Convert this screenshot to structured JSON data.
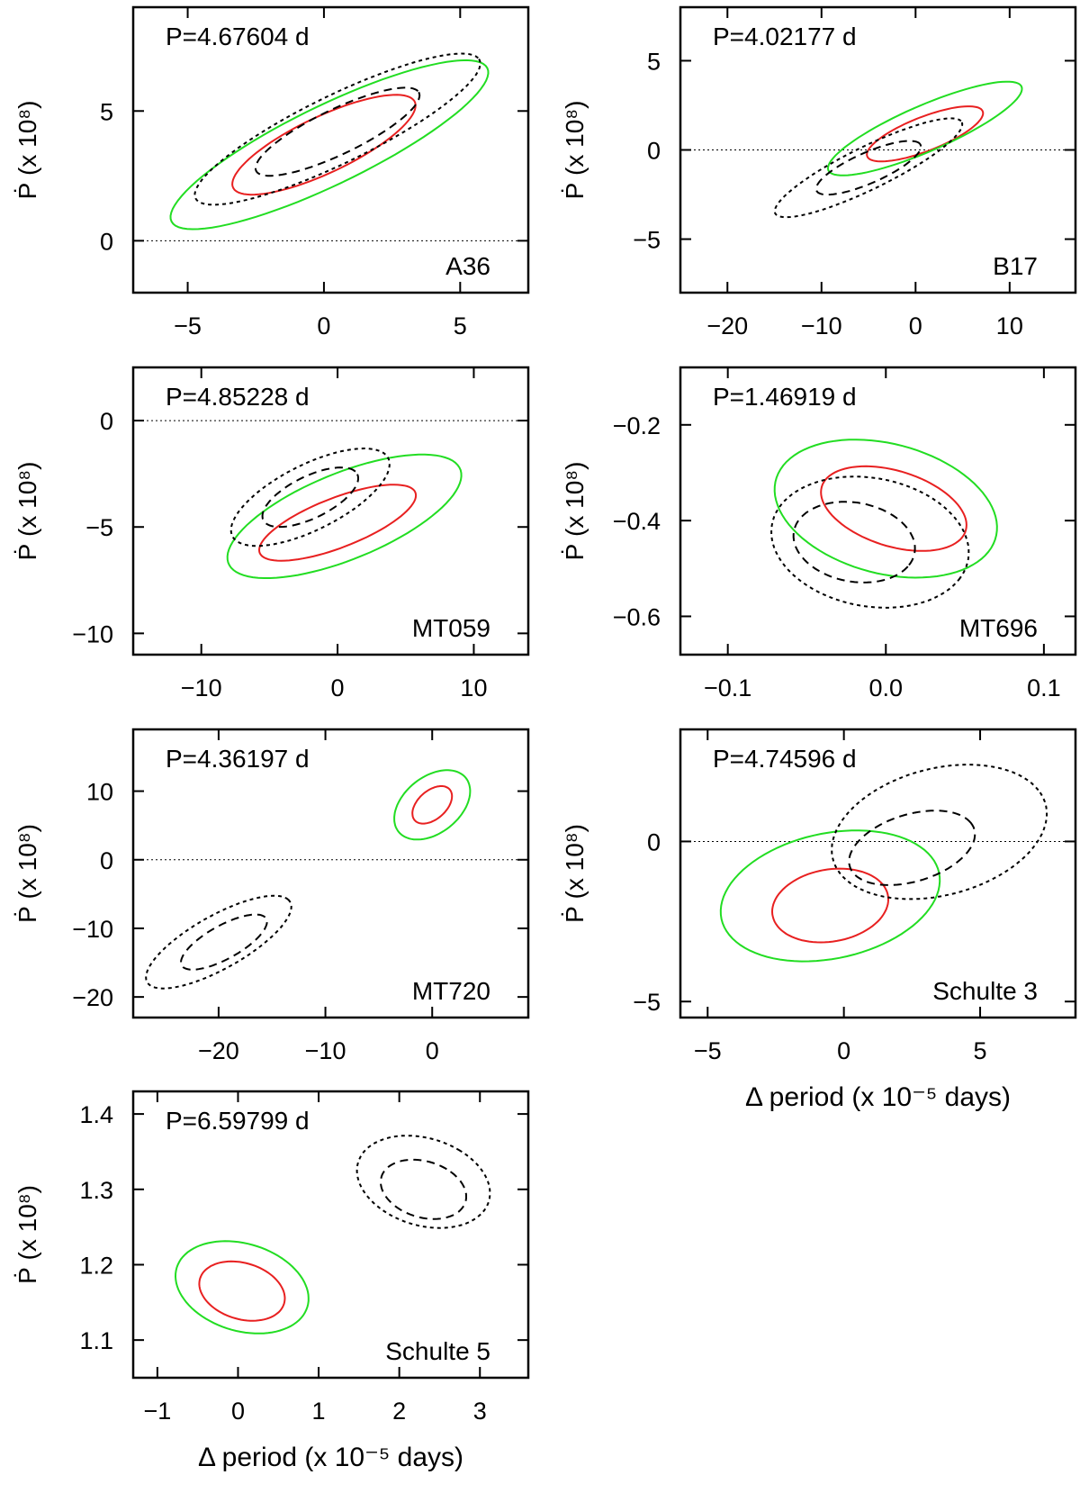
{
  "chart_data": [
    {
      "type": "contour",
      "star": "A36",
      "period_label": "P=4.67604 d",
      "xlim": [
        -7,
        7.5
      ],
      "ylim": [
        -2,
        9
      ],
      "xticks": [
        -5,
        0,
        5
      ],
      "yticks": [
        0,
        5
      ],
      "ylabel": "Ṗ (x 10⁸)",
      "xlabel": "",
      "zero_line": 0,
      "contours": [
        {
          "color": "#e82020",
          "dash": "solid",
          "center": [
            0,
            3.7
          ],
          "semi_axes": [
            4.0,
            1.0
          ],
          "angle_deg": 35
        },
        {
          "color": "#22dd22",
          "dash": "solid",
          "center": [
            0.2,
            3.7
          ],
          "semi_axes": [
            7.0,
            1.4
          ],
          "angle_deg": 35
        },
        {
          "color": "#000000",
          "dash": "dashed",
          "center": [
            0.5,
            4.2
          ],
          "semi_axes": [
            3.6,
            0.8
          ],
          "angle_deg": 35
        },
        {
          "color": "#000000",
          "dash": "dotted",
          "center": [
            0.5,
            4.3
          ],
          "semi_axes": [
            6.3,
            1.2
          ],
          "angle_deg": 35
        }
      ]
    },
    {
      "type": "contour",
      "star": "B17",
      "period_label": "P=4.02177 d",
      "xlim": [
        -25,
        17
      ],
      "ylim": [
        -8,
        8
      ],
      "xticks": [
        -20,
        -10,
        0,
        10
      ],
      "yticks": [
        -5,
        0,
        5
      ],
      "ylabel": "Ṗ (x 10⁸)",
      "xlabel": "",
      "zero_line": 0,
      "contours": [
        {
          "color": "#e82020",
          "dash": "solid",
          "center": [
            1,
            0.9
          ],
          "semi_axes": [
            7,
            0.9
          ],
          "angle_deg": 30
        },
        {
          "color": "#22dd22",
          "dash": "solid",
          "center": [
            1,
            1.2
          ],
          "semi_axes": [
            12,
            1.2
          ],
          "angle_deg": 32
        },
        {
          "color": "#000000",
          "dash": "dashed",
          "center": [
            -5,
            -1
          ],
          "semi_axes": [
            6.5,
            0.8
          ],
          "angle_deg": 33
        },
        {
          "color": "#000000",
          "dash": "dotted",
          "center": [
            -5,
            -1
          ],
          "semi_axes": [
            12,
            1.1
          ],
          "angle_deg": 35
        }
      ]
    },
    {
      "type": "contour",
      "star": "MT059",
      "period_label": "P=4.85228 d",
      "xlim": [
        -15,
        14
      ],
      "ylim": [
        -11,
        2.5
      ],
      "xticks": [
        -10,
        0,
        10
      ],
      "yticks": [
        -10,
        -5,
        0
      ],
      "ylabel": "Ṗ (x 10⁸)",
      "xlabel": "",
      "zero_line": 0,
      "contours": [
        {
          "color": "#e82020",
          "dash": "solid",
          "center": [
            0,
            -4.8
          ],
          "semi_axes": [
            6.5,
            1.1
          ],
          "angle_deg": 30
        },
        {
          "color": "#22dd22",
          "dash": "solid",
          "center": [
            0.5,
            -4.5
          ],
          "semi_axes": [
            9.8,
            1.9
          ],
          "angle_deg": 32
        },
        {
          "color": "#000000",
          "dash": "dashed",
          "center": [
            -2,
            -3.6
          ],
          "semi_axes": [
            4.2,
            0.9
          ],
          "angle_deg": 38
        },
        {
          "color": "#000000",
          "dash": "dotted",
          "center": [
            -2,
            -3.6
          ],
          "semi_axes": [
            7,
            1.4
          ],
          "angle_deg": 38
        }
      ]
    },
    {
      "type": "contour",
      "star": "MT696",
      "period_label": "P=1.46919 d",
      "xlim": [
        -0.13,
        0.12
      ],
      "ylim": [
        -0.68,
        -0.08
      ],
      "xticks": [
        -0.1,
        0.0,
        0.1
      ],
      "ytick_labels": [
        "−0.2",
        "−0.4",
        "−0.6"
      ],
      "yticks": [
        -0.2,
        -0.4,
        -0.6
      ],
      "xtick_labels": [
        "−0.1",
        "0.0",
        "0.1"
      ],
      "ylabel": "Ṗ (x 10⁸)",
      "xlabel": "",
      "zero_line": null,
      "contours": [
        {
          "color": "#e82020",
          "dash": "solid",
          "center": [
            0.005,
            -0.375
          ],
          "semi_axes": [
            0.05,
            0.075
          ],
          "angle_deg": -30
        },
        {
          "color": "#22dd22",
          "dash": "solid",
          "center": [
            0.0,
            -0.375
          ],
          "semi_axes": [
            0.075,
            0.13
          ],
          "angle_deg": -30
        },
        {
          "color": "#000000",
          "dash": "dashed",
          "center": [
            -0.02,
            -0.445
          ],
          "semi_axes": [
            0.04,
            0.08
          ],
          "angle_deg": -30
        },
        {
          "color": "#000000",
          "dash": "dotted",
          "center": [
            -0.01,
            -0.445
          ],
          "semi_axes": [
            0.065,
            0.13
          ],
          "angle_deg": -30
        }
      ]
    },
    {
      "type": "contour",
      "star": "MT720",
      "period_label": "P=4.36197 d",
      "xlim": [
        -28,
        9
      ],
      "ylim": [
        -23,
        19
      ],
      "xticks": [
        -20,
        -10,
        0
      ],
      "yticks": [
        -20,
        -10,
        0,
        10
      ],
      "ylabel": "Ṗ (x 10⁸)",
      "xlabel": "",
      "zero_line": 0,
      "contours": [
        {
          "color": "#e82020",
          "dash": "solid",
          "center": [
            0,
            8
          ],
          "semi_axes": [
            1.5,
            3
          ],
          "angle_deg": -30
        },
        {
          "color": "#22dd22",
          "dash": "solid",
          "center": [
            0,
            8
          ],
          "semi_axes": [
            3,
            5.5
          ],
          "angle_deg": -30
        },
        {
          "color": "#000000",
          "dash": "dashed",
          "center": [
            -19.5,
            -12
          ],
          "semi_axes": [
            5,
            2.2
          ],
          "angle_deg": 40
        },
        {
          "color": "#000000",
          "dash": "dotted",
          "center": [
            -20,
            -12
          ],
          "semi_axes": [
            8.5,
            3.5
          ],
          "angle_deg": 40
        }
      ]
    },
    {
      "type": "contour",
      "star": "Schulte 3",
      "period_label": "P=4.74596 d",
      "xlim": [
        -6,
        8.5
      ],
      "ylim": [
        -5.5,
        3.5
      ],
      "xticks": [
        -5,
        0,
        5
      ],
      "yticks": [
        -5,
        0
      ],
      "ylabel": "Ṗ (x 10⁸)",
      "xlabel": "Δ period (x 10⁻⁵ days)",
      "zero_line": 0,
      "contours": [
        {
          "color": "#e82020",
          "dash": "solid",
          "center": [
            -0.5,
            -2
          ],
          "semi_axes": [
            2.2,
            1.1
          ],
          "angle_deg": 25
        },
        {
          "color": "#22dd22",
          "dash": "solid",
          "center": [
            -0.5,
            -1.7
          ],
          "semi_axes": [
            4.2,
            1.9
          ],
          "angle_deg": 25
        },
        {
          "color": "#000000",
          "dash": "dashed",
          "center": [
            2.5,
            -0.2
          ],
          "semi_axes": [
            2.5,
            1.0
          ],
          "angle_deg": 30
        },
        {
          "color": "#000000",
          "dash": "dotted",
          "center": [
            3.5,
            0.3
          ],
          "semi_axes": [
            4.2,
            1.9
          ],
          "angle_deg": 30
        }
      ]
    },
    {
      "type": "contour",
      "star": "Schulte 5",
      "period_label": "P=6.59799 d",
      "xlim": [
        -1.3,
        3.6
      ],
      "ylim": [
        1.05,
        1.43
      ],
      "xticks": [
        -1,
        0,
        1,
        2,
        3
      ],
      "yticks": [
        1.1,
        1.2,
        1.3,
        1.4
      ],
      "ytick_labels": [
        "1.1",
        "1.2",
        "1.3",
        "1.4"
      ],
      "xtick_labels": [
        "−1",
        "0",
        "1",
        "2",
        "3"
      ],
      "ylabel": "Ṗ (x 10⁸)",
      "xlabel": "Δ period (x 10⁻⁵ days)",
      "zero_line": null,
      "contours": [
        {
          "color": "#e82020",
          "dash": "solid",
          "center": [
            0.05,
            1.165
          ],
          "semi_axes": [
            0.45,
            0.045
          ],
          "angle_deg": 50
        },
        {
          "color": "#22dd22",
          "dash": "solid",
          "center": [
            0.05,
            1.17
          ],
          "semi_axes": [
            0.7,
            0.07
          ],
          "angle_deg": 50
        },
        {
          "color": "#000000",
          "dash": "dashed",
          "center": [
            2.3,
            1.3
          ],
          "semi_axes": [
            0.45,
            0.045
          ],
          "angle_deg": 50
        },
        {
          "color": "#000000",
          "dash": "dotted",
          "center": [
            2.3,
            1.31
          ],
          "semi_axes": [
            0.7,
            0.07
          ],
          "angle_deg": 50
        }
      ]
    }
  ]
}
